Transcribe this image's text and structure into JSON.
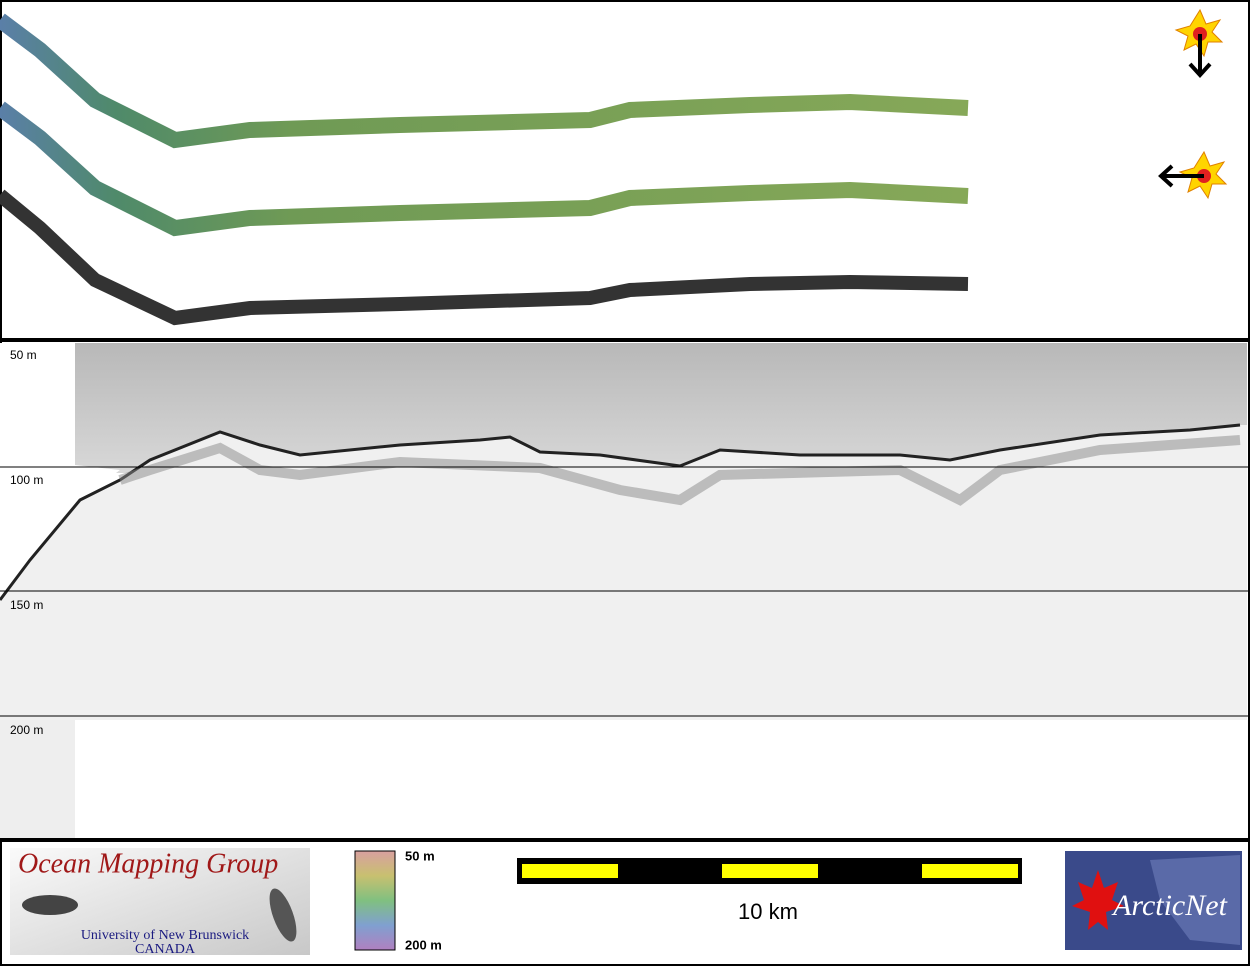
{
  "profile": {
    "depth_labels": [
      "50 m",
      "100 m",
      "150 m",
      "200 m"
    ]
  },
  "footer": {
    "logo": {
      "title": "Ocean Mapping Group",
      "subtitle": "University of New Brunswick",
      "country": "CANADA"
    },
    "colorbar": {
      "top": "50 m",
      "bottom": "200 m"
    },
    "scale_bar": "10 km",
    "partner": "ArcticNet"
  }
}
